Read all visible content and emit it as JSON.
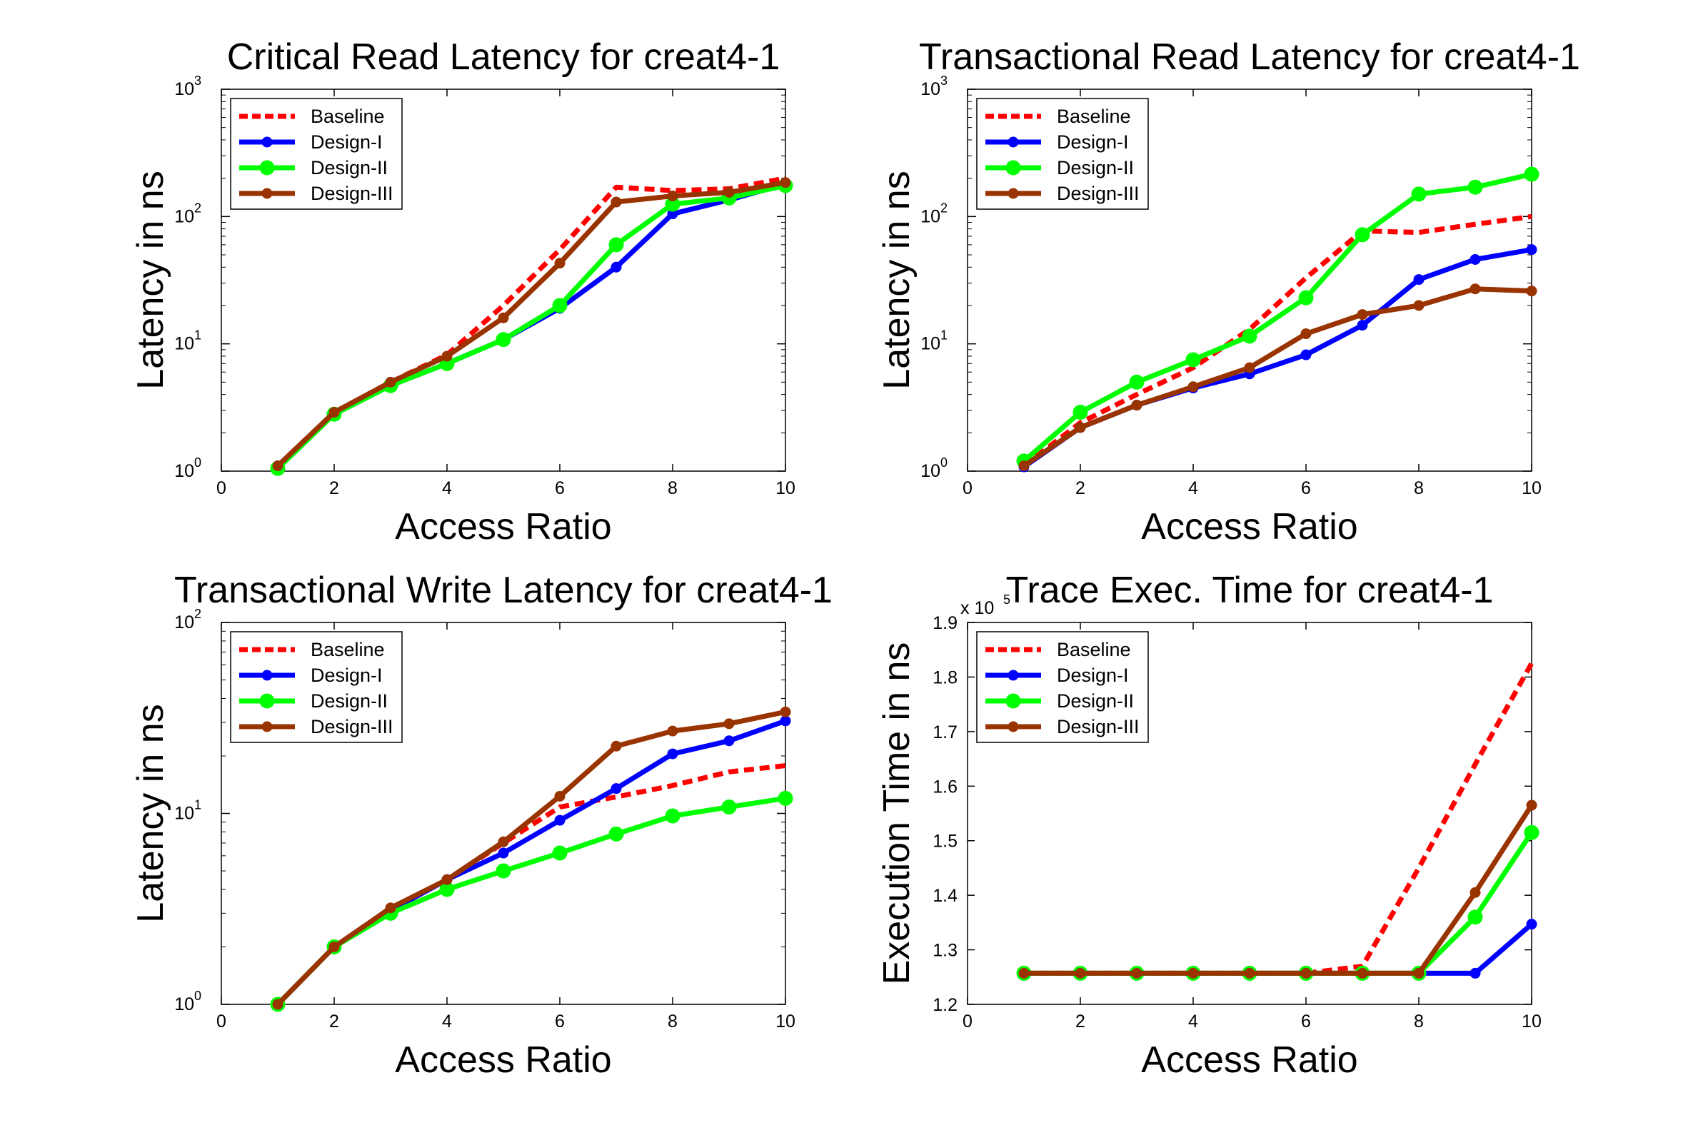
{
  "colors": {
    "Baseline": "#ff0000",
    "Design-I": "#0000ff",
    "Design-II": "#00ff00",
    "Design-III": "#993300"
  },
  "chart_data": [
    {
      "type": "line",
      "title": "Critical Read Latency for creat4-1",
      "xlabel": "Access Ratio",
      "ylabel": "Latency in ns",
      "xlim": [
        0,
        10
      ],
      "ylim": [
        1,
        1000
      ],
      "yscale": "log",
      "xticks": [
        "0",
        "2",
        "4",
        "6",
        "8",
        "10"
      ],
      "yticks": [
        {
          "base": "10",
          "exp": "0"
        },
        {
          "base": "10",
          "exp": "1"
        },
        {
          "base": "10",
          "exp": "2"
        },
        {
          "base": "10",
          "exp": "3"
        }
      ],
      "legend_position": "top-left",
      "x": [
        1,
        2,
        3,
        4,
        5,
        6,
        7,
        8,
        9,
        10
      ],
      "series": [
        {
          "name": "Baseline",
          "values": [
            1.1,
            2.9,
            5.0,
            8.2,
            20,
            55,
            170,
            160,
            165,
            200
          ]
        },
        {
          "name": "Design-I",
          "values": [
            1.1,
            2.8,
            4.7,
            7.0,
            10.8,
            19,
            40,
            105,
            135,
            180
          ]
        },
        {
          "name": "Design-II",
          "values": [
            1.05,
            2.8,
            4.7,
            7.0,
            10.8,
            20,
            60,
            125,
            140,
            175
          ]
        },
        {
          "name": "Design-III",
          "values": [
            1.1,
            2.9,
            5.0,
            8.0,
            16,
            43,
            130,
            145,
            155,
            185
          ]
        }
      ]
    },
    {
      "type": "line",
      "title": "Transactional Read Latency for creat4-1",
      "xlabel": "Access Ratio",
      "ylabel": "Latency in ns",
      "xlim": [
        0,
        10
      ],
      "ylim": [
        1,
        1000
      ],
      "yscale": "log",
      "xticks": [
        "0",
        "2",
        "4",
        "6",
        "8",
        "10"
      ],
      "yticks": [
        {
          "base": "10",
          "exp": "0"
        },
        {
          "base": "10",
          "exp": "1"
        },
        {
          "base": "10",
          "exp": "2"
        },
        {
          "base": "10",
          "exp": "3"
        }
      ],
      "legend_position": "top-left",
      "x": [
        1,
        2,
        3,
        4,
        5,
        6,
        7,
        8,
        9,
        10
      ],
      "series": [
        {
          "name": "Baseline",
          "values": [
            1.1,
            2.4,
            4.0,
            6.5,
            13,
            33,
            77,
            75,
            87,
            100
          ]
        },
        {
          "name": "Design-I",
          "values": [
            1.08,
            2.2,
            3.3,
            4.5,
            5.8,
            8.2,
            14,
            32,
            46,
            55
          ]
        },
        {
          "name": "Design-II",
          "values": [
            1.2,
            2.9,
            5.0,
            7.5,
            11.5,
            23,
            72,
            150,
            170,
            215
          ]
        },
        {
          "name": "Design-III",
          "values": [
            1.1,
            2.2,
            3.3,
            4.6,
            6.5,
            12,
            17,
            20,
            27,
            26
          ]
        }
      ]
    },
    {
      "type": "line",
      "title": "Transactional Write Latency for creat4-1",
      "xlabel": "Access Ratio",
      "ylabel": "Latency in ns",
      "xlim": [
        0,
        10
      ],
      "ylim": [
        1,
        100
      ],
      "yscale": "log",
      "xticks": [
        "0",
        "2",
        "4",
        "6",
        "8",
        "10"
      ],
      "yticks": [
        {
          "base": "10",
          "exp": "0"
        },
        {
          "base": "10",
          "exp": "1"
        },
        {
          "base": "10",
          "exp": "2"
        }
      ],
      "legend_position": "top-left",
      "x": [
        1,
        2,
        3,
        4,
        5,
        6,
        7,
        8,
        9,
        10
      ],
      "series": [
        {
          "name": "Baseline",
          "values": [
            1.0,
            2.0,
            3.1,
            4.5,
            7.0,
            10.8,
            12.2,
            14.0,
            16.5,
            17.8
          ]
        },
        {
          "name": "Design-I",
          "values": [
            1.0,
            2.0,
            3.1,
            4.5,
            6.2,
            9.2,
            13.5,
            20.5,
            24.0,
            30.5
          ]
        },
        {
          "name": "Design-II",
          "values": [
            1.0,
            2.0,
            3.0,
            4.0,
            5.0,
            6.2,
            7.8,
            9.7,
            10.8,
            12.0
          ]
        },
        {
          "name": "Design-III",
          "values": [
            1.0,
            2.0,
            3.2,
            4.5,
            7.1,
            12.3,
            22.5,
            27.0,
            29.5,
            34.0
          ]
        }
      ]
    },
    {
      "type": "line",
      "title": "Trace Exec. Time for creat4-1",
      "xlabel": "Access Ratio",
      "ylabel": "Execution Time in ns",
      "y_multiplier": {
        "prefix": "x 10",
        "exp": "5"
      },
      "xlim": [
        0,
        10
      ],
      "ylim": [
        1.2,
        1.9
      ],
      "yscale": "linear",
      "xticks": [
        "0",
        "2",
        "4",
        "6",
        "8",
        "10"
      ],
      "yticks": [
        "1.2",
        "1.3",
        "1.4",
        "1.5",
        "1.6",
        "1.7",
        "1.8",
        "1.9"
      ],
      "legend_position": "top-left",
      "x": [
        1,
        2,
        3,
        4,
        5,
        6,
        7,
        8,
        9,
        10
      ],
      "series": [
        {
          "name": "Baseline",
          "values": [
            1.257,
            1.257,
            1.257,
            1.257,
            1.257,
            1.257,
            1.27,
            1.45,
            1.64,
            1.825
          ]
        },
        {
          "name": "Design-I",
          "values": [
            1.257,
            1.257,
            1.257,
            1.257,
            1.257,
            1.257,
            1.257,
            1.257,
            1.257,
            1.347
          ]
        },
        {
          "name": "Design-II",
          "values": [
            1.257,
            1.257,
            1.257,
            1.257,
            1.257,
            1.257,
            1.257,
            1.257,
            1.36,
            1.515
          ]
        },
        {
          "name": "Design-III",
          "values": [
            1.257,
            1.257,
            1.257,
            1.257,
            1.257,
            1.257,
            1.257,
            1.257,
            1.405,
            1.565
          ]
        }
      ]
    }
  ]
}
